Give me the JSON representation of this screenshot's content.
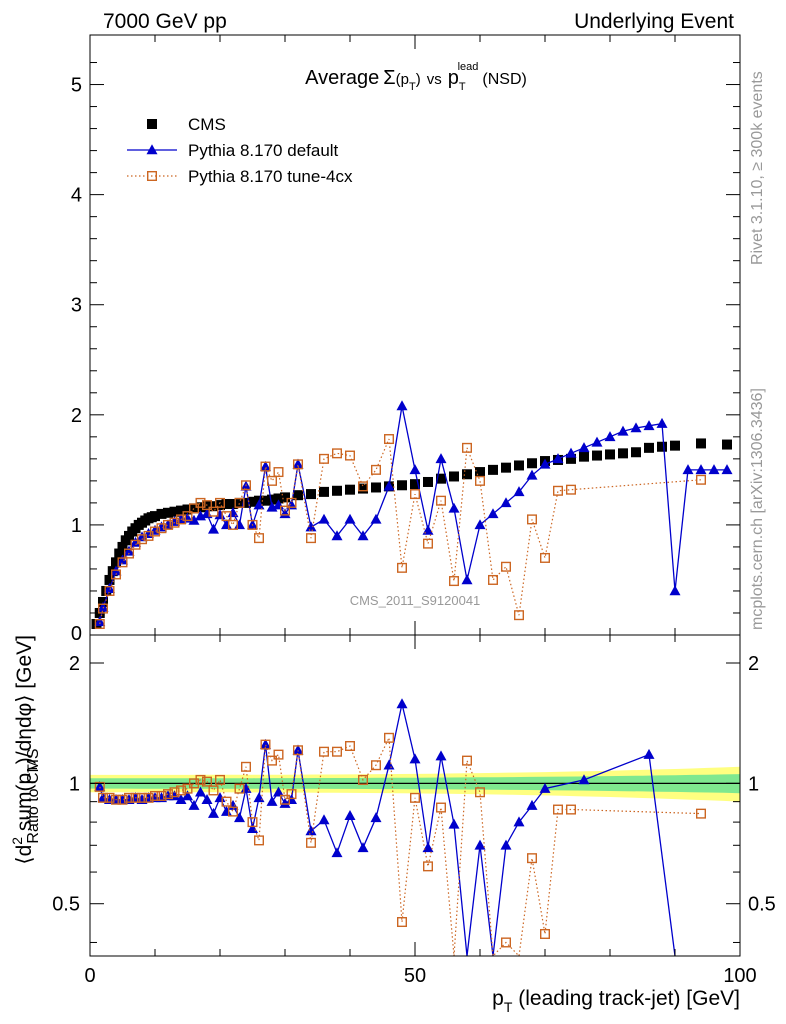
{
  "header": {
    "left": "7000 GeV pp",
    "right": "Underlying Event"
  },
  "side_labels": {
    "top": "Rivet 3.1.10, ≥ 300k events",
    "bottom": "mcplots.cern.ch [arXiv:1306.3436]"
  },
  "watermark": "CMS_2011_S9120041",
  "chart_data": [
    {
      "type": "scatter",
      "panel": "main",
      "title": {
        "prefix": "Average",
        "sigma": "Σ",
        "lp": "(p",
        "sub1": "T",
        "rp": ")",
        "vs": "vs",
        "pt": "p",
        "sub2": "T",
        "sup2": "lead",
        "suffix": "(NSD)"
      },
      "ylabel": {
        "pre": "⟨d",
        "sup": "2",
        "mid": " sum(p",
        "sub": "T",
        "post": ")/dηdφ⟩ [GeV]"
      },
      "xlim": [
        0,
        100
      ],
      "ylim": [
        0,
        5.45
      ],
      "yticks": [
        "1",
        "2",
        "3",
        "4",
        "5"
      ],
      "ytick_values": [
        1,
        2,
        3,
        4,
        5
      ],
      "ytick_zero": "0",
      "legend": {
        "placement": "top-left",
        "entries": [
          "CMS",
          "Pythia 8.170 default",
          "Pythia 8.170 tune-4cx"
        ]
      },
      "series": [
        {
          "name": "CMS",
          "color": "#000000",
          "marker": "filled-square",
          "x": [
            1,
            1.5,
            2,
            2.5,
            3,
            3.5,
            4,
            4.5,
            5,
            5.5,
            6,
            6.5,
            7,
            7.5,
            8,
            8.5,
            9,
            9.5,
            10,
            11,
            12,
            13,
            14,
            15,
            16,
            17,
            18,
            19,
            20,
            21,
            22,
            23,
            24,
            25,
            26,
            27,
            28,
            29,
            30,
            32,
            34,
            36,
            38,
            40,
            42,
            44,
            46,
            48,
            50,
            52,
            54,
            56,
            58,
            60,
            62,
            64,
            66,
            68,
            70,
            72,
            74,
            76,
            78,
            80,
            82,
            84,
            86,
            88,
            90,
            94,
            98
          ],
          "y": [
            0.1,
            0.2,
            0.3,
            0.4,
            0.5,
            0.58,
            0.66,
            0.74,
            0.8,
            0.86,
            0.9,
            0.94,
            0.97,
            1.0,
            1.02,
            1.04,
            1.06,
            1.07,
            1.08,
            1.1,
            1.11,
            1.12,
            1.13,
            1.14,
            1.15,
            1.16,
            1.17,
            1.17,
            1.18,
            1.19,
            1.19,
            1.2,
            1.2,
            1.21,
            1.22,
            1.22,
            1.23,
            1.24,
            1.25,
            1.27,
            1.28,
            1.3,
            1.31,
            1.32,
            1.33,
            1.34,
            1.35,
            1.36,
            1.37,
            1.39,
            1.42,
            1.44,
            1.46,
            1.48,
            1.5,
            1.52,
            1.54,
            1.56,
            1.58,
            1.59,
            1.6,
            1.62,
            1.63,
            1.64,
            1.65,
            1.66,
            1.7,
            1.71,
            1.72,
            1.74,
            1.73
          ]
        },
        {
          "name": "Pythia 8.170 default",
          "color": "#0000cc",
          "marker": "filled-triangle",
          "x": [
            1.5,
            2,
            3,
            4,
            5,
            6,
            7,
            8,
            9,
            10,
            11,
            12,
            13,
            14,
            15,
            16,
            17,
            18,
            19,
            20,
            21,
            22,
            23,
            24,
            25,
            26,
            27,
            28,
            29,
            30,
            31,
            32,
            34,
            36,
            38,
            40,
            42,
            44,
            46,
            48,
            50,
            52,
            54,
            56,
            58,
            60,
            62,
            64,
            66,
            68,
            70,
            72,
            74,
            76,
            78,
            80,
            82,
            84,
            86,
            88,
            90,
            92,
            94,
            96,
            98
          ],
          "y": [
            0.12,
            0.25,
            0.42,
            0.58,
            0.68,
            0.76,
            0.84,
            0.89,
            0.92,
            0.95,
            0.98,
            1.0,
            1.03,
            1.05,
            1.06,
            1.04,
            1.08,
            1.1,
            0.96,
            1.09,
            1.0,
            1.11,
            1.0,
            1.35,
            1.0,
            1.18,
            1.53,
            1.16,
            1.18,
            1.1,
            1.18,
            1.55,
            0.98,
            1.05,
            0.9,
            1.05,
            0.9,
            1.05,
            1.35,
            2.08,
            1.5,
            0.95,
            1.6,
            1.15,
            0.5,
            1.0,
            1.1,
            1.2,
            1.3,
            1.45,
            1.55,
            1.6,
            1.65,
            1.7,
            1.75,
            1.8,
            1.85,
            1.88,
            1.9,
            1.92,
            0.4,
            1.5,
            1.5,
            1.5,
            1.5
          ]
        },
        {
          "name": "Pythia 8.170 tune-4cx",
          "color": "#cc6622",
          "marker": "open-square",
          "x": [
            1.5,
            2,
            3,
            4,
            5,
            6,
            7,
            8,
            9,
            10,
            11,
            12,
            13,
            14,
            15,
            16,
            17,
            18,
            19,
            20,
            21,
            22,
            23,
            24,
            25,
            26,
            27,
            28,
            29,
            30,
            31,
            32,
            34,
            36,
            38,
            40,
            42,
            44,
            46,
            48,
            50,
            52,
            54,
            56,
            58,
            60,
            62,
            64,
            66,
            68,
            70,
            72,
            74,
            94
          ],
          "y": [
            0.1,
            0.24,
            0.4,
            0.55,
            0.66,
            0.74,
            0.82,
            0.87,
            0.9,
            0.94,
            0.97,
            1.0,
            1.02,
            1.05,
            1.08,
            1.15,
            1.2,
            1.18,
            1.12,
            1.2,
            1.08,
            1.0,
            1.2,
            1.36,
            1.0,
            0.88,
            1.53,
            1.4,
            1.48,
            1.13,
            1.2,
            1.55,
            0.88,
            1.6,
            1.65,
            1.63,
            1.35,
            1.5,
            1.78,
            0.61,
            1.28,
            0.83,
            1.22,
            0.49,
            1.7,
            1.4,
            0.5,
            0.62,
            0.18,
            1.05,
            0.7,
            1.31,
            1.32,
            1.41
          ]
        }
      ]
    },
    {
      "type": "scatter",
      "panel": "ratio",
      "ylabel": "Ratio to CMS",
      "xlabel": {
        "pt": "p",
        "sub": "T",
        "rest": " (leading track-jet) [GeV]"
      },
      "xlim": [
        0,
        100
      ],
      "ylim_log": [
        0.37,
        2.35
      ],
      "xticks": [
        "0",
        "50",
        "100"
      ],
      "xtick_values": [
        0,
        50,
        100
      ],
      "yticks": [
        "0.5",
        "1",
        "2"
      ],
      "ytick_values": [
        0.5,
        1,
        2
      ],
      "reference_line": 1,
      "bands": [
        {
          "color": "#ffff80",
          "half_width_start": 0.05,
          "half_width_end": 0.1
        },
        {
          "color": "#7fe88f",
          "half_width_start": 0.03,
          "half_width_end": 0.055
        }
      ],
      "series": [
        {
          "name": "Pythia 8.170 default",
          "color": "#0000cc",
          "marker": "filled-triangle",
          "x": [
            1.5,
            2,
            3,
            4,
            5,
            6,
            7,
            8,
            9,
            10,
            11,
            12,
            13,
            14,
            15,
            16,
            17,
            18,
            19,
            20,
            21,
            22,
            23,
            24,
            25,
            26,
            27,
            28,
            29,
            30,
            31,
            32,
            34,
            36,
            38,
            40,
            42,
            44,
            46,
            48,
            50,
            52,
            54,
            56,
            58,
            60,
            62,
            64,
            66,
            68,
            70,
            76,
            86,
            90
          ],
          "y": [
            0.98,
            0.92,
            0.91,
            0.91,
            0.91,
            0.91,
            0.92,
            0.91,
            0.92,
            0.92,
            0.92,
            0.93,
            0.93,
            0.91,
            0.93,
            0.88,
            0.95,
            0.91,
            0.84,
            0.92,
            0.85,
            0.88,
            0.82,
            0.97,
            0.77,
            0.92,
            1.25,
            0.9,
            0.95,
            0.89,
            0.91,
            1.21,
            0.76,
            0.81,
            0.67,
            0.83,
            0.69,
            0.82,
            1.11,
            1.58,
            1.15,
            0.69,
            1.17,
            0.79,
            0.34,
            0.7,
            0.34,
            0.7,
            0.8,
            0.88,
            0.97,
            1.02,
            1.18,
            0.3
          ]
        },
        {
          "name": "Pythia 8.170 tune-4cx",
          "color": "#cc6622",
          "marker": "open-square",
          "x": [
            1.5,
            2,
            3,
            4,
            5,
            6,
            7,
            8,
            9,
            10,
            11,
            12,
            13,
            14,
            15,
            16,
            17,
            18,
            19,
            20,
            21,
            22,
            23,
            24,
            25,
            26,
            27,
            28,
            29,
            30,
            31,
            32,
            34,
            36,
            38,
            40,
            42,
            44,
            46,
            48,
            50,
            52,
            54,
            56,
            58,
            60,
            62,
            64,
            66,
            68,
            70,
            72,
            74,
            94
          ],
          "y": [
            0.98,
            0.92,
            0.92,
            0.91,
            0.91,
            0.92,
            0.92,
            0.92,
            0.92,
            0.93,
            0.93,
            0.94,
            0.95,
            0.96,
            0.97,
            1.0,
            1.02,
            1.01,
            0.96,
            1.02,
            0.9,
            0.85,
            0.97,
            1.1,
            0.8,
            0.72,
            1.25,
            1.14,
            1.18,
            0.91,
            0.94,
            1.21,
            0.71,
            1.2,
            1.2,
            1.24,
            1.02,
            1.11,
            1.3,
            0.45,
            0.92,
            0.62,
            0.87,
            0.35,
            1.14,
            0.95,
            0.33,
            0.4,
            0.11,
            0.65,
            0.42,
            0.86,
            0.86,
            0.84
          ]
        }
      ]
    }
  ]
}
